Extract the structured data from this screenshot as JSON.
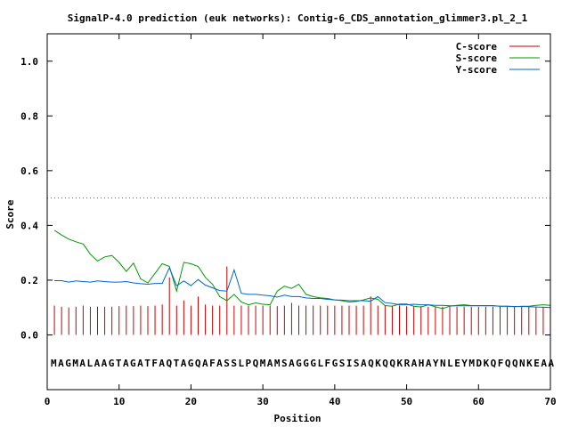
{
  "chart_data": {
    "type": "line",
    "title": "SignalP-4.0 prediction (euk networks): Contig-6_CDS_annotation_glimmer3.pl_2_1",
    "xlabel": "Position",
    "ylabel": "Score",
    "xlim": [
      0,
      70
    ],
    "ylim": [
      -0.2,
      1.1
    ],
    "x_ticks": [
      0,
      10,
      20,
      30,
      40,
      50,
      60,
      70
    ],
    "y_ticks": [
      0.0,
      0.2,
      0.4,
      0.6,
      0.8,
      1.0
    ],
    "x_tick_labels": [
      "0",
      "10",
      "20",
      "30",
      "40",
      "50",
      "60",
      "70"
    ],
    "y_tick_labels": [
      "0.0",
      "0.2",
      "0.4",
      "0.6",
      "0.8",
      "1.0"
    ],
    "threshold": 0.5,
    "legend_position": "top-right",
    "sequence": "MAGMALAAGTAGATFAQTAGQAFASSLPQMAMSAGGGLFGSISAQKQQKRAHAYNLEYMDKQFQQNKEAA",
    "series": [
      {
        "name": "C-score",
        "color": "#cc0000",
        "style": "impulse",
        "values": [
          0.107,
          0.103,
          0.1,
          0.103,
          0.107,
          0.103,
          0.103,
          0.103,
          0.103,
          0.105,
          0.107,
          0.105,
          0.107,
          0.105,
          0.107,
          0.111,
          0.21,
          0.107,
          0.126,
          0.107,
          0.14,
          0.111,
          0.107,
          0.107,
          0.25,
          0.107,
          0.107,
          0.107,
          0.107,
          0.107,
          0.107,
          0.105,
          0.107,
          0.117,
          0.107,
          0.107,
          0.107,
          0.107,
          0.107,
          0.107,
          0.107,
          0.107,
          0.107,
          0.107,
          0.14,
          0.107,
          0.107,
          0.107,
          0.107,
          0.105,
          0.105,
          0.105,
          0.103,
          0.103,
          0.103,
          0.103,
          0.103,
          0.103,
          0.103,
          0.103,
          0.103,
          0.103,
          0.103,
          0.103,
          0.103,
          0.103,
          0.103,
          0.103,
          0.103,
          0.103
        ]
      },
      {
        "name": "S-score",
        "color": "#009900",
        "style": "line",
        "values": [
          0.382,
          0.365,
          0.35,
          0.34,
          0.332,
          0.295,
          0.27,
          0.285,
          0.29,
          0.265,
          0.232,
          0.262,
          0.205,
          0.19,
          0.225,
          0.26,
          0.25,
          0.16,
          0.265,
          0.26,
          0.25,
          0.21,
          0.185,
          0.14,
          0.125,
          0.148,
          0.12,
          0.11,
          0.117,
          0.112,
          0.11,
          0.16,
          0.178,
          0.17,
          0.185,
          0.148,
          0.14,
          0.135,
          0.133,
          0.128,
          0.125,
          0.12,
          0.122,
          0.128,
          0.135,
          0.13,
          0.107,
          0.105,
          0.113,
          0.113,
          0.105,
          0.102,
          0.11,
          0.103,
          0.096,
          0.105,
          0.108,
          0.11,
          0.107,
          0.107,
          0.107,
          0.107,
          0.105,
          0.105,
          0.103,
          0.105,
          0.105,
          0.108,
          0.11,
          0.108
        ]
      },
      {
        "name": "Y-score",
        "color": "#0066cc",
        "style": "line",
        "values": [
          0.198,
          0.198,
          0.193,
          0.197,
          0.195,
          0.193,
          0.197,
          0.195,
          0.193,
          0.193,
          0.195,
          0.19,
          0.187,
          0.185,
          0.188,
          0.188,
          0.245,
          0.18,
          0.197,
          0.18,
          0.202,
          0.182,
          0.172,
          0.162,
          0.16,
          0.237,
          0.152,
          0.148,
          0.148,
          0.145,
          0.143,
          0.138,
          0.145,
          0.14,
          0.14,
          0.135,
          0.133,
          0.133,
          0.13,
          0.128,
          0.127,
          0.125,
          0.125,
          0.125,
          0.123,
          0.14,
          0.118,
          0.115,
          0.11,
          0.11,
          0.112,
          0.11,
          0.11,
          0.108,
          0.108,
          0.106,
          0.106,
          0.106,
          0.106,
          0.106,
          0.106,
          0.106,
          0.105,
          0.105,
          0.104,
          0.104,
          0.103,
          0.102,
          0.101,
          0.1
        ]
      }
    ]
  }
}
